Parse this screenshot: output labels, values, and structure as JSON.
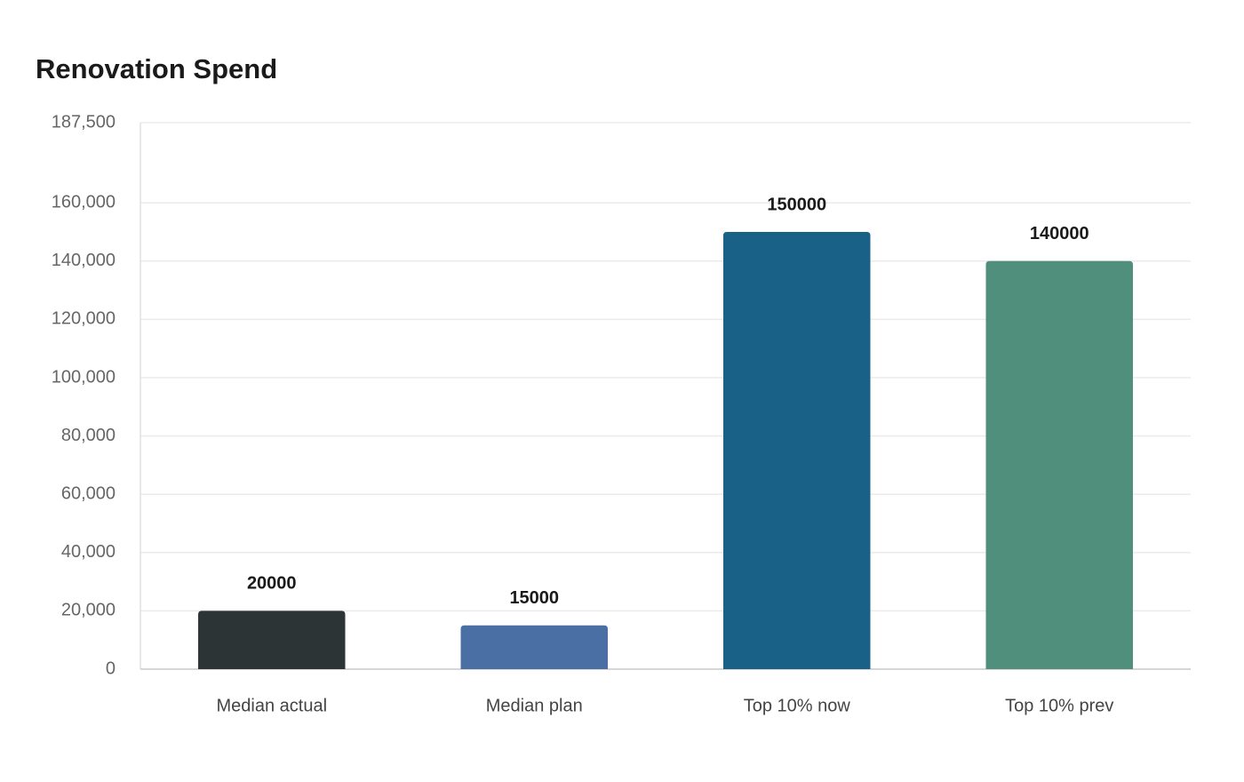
{
  "chart_data": {
    "type": "bar",
    "title": "Renovation Spend",
    "categories": [
      "Median actual",
      "Median plan",
      "Top 10% now",
      "Top 10% prev"
    ],
    "values": [
      20000,
      15000,
      150000,
      140000
    ],
    "colors": [
      "#2d3436",
      "#4a6fa5",
      "#1a6188",
      "#4f8f7c"
    ],
    "ylim": [
      0,
      187500
    ],
    "yticks": [
      0,
      {
        "value": 20000,
        "label": "20,000"
      },
      {
        "value": 40000,
        "label": "40,000"
      },
      {
        "value": 60000,
        "label": "60,000"
      },
      {
        "value": 80000,
        "label": "80,000"
      },
      {
        "value": 100000,
        "label": "100,000"
      },
      {
        "value": 120000,
        "label": "120,000"
      },
      {
        "value": 140000,
        "label": "140,000"
      },
      {
        "value": 160000,
        "label": "160,000"
      },
      {
        "value": 187500,
        "label": "187,500"
      }
    ],
    "grid": true
  }
}
